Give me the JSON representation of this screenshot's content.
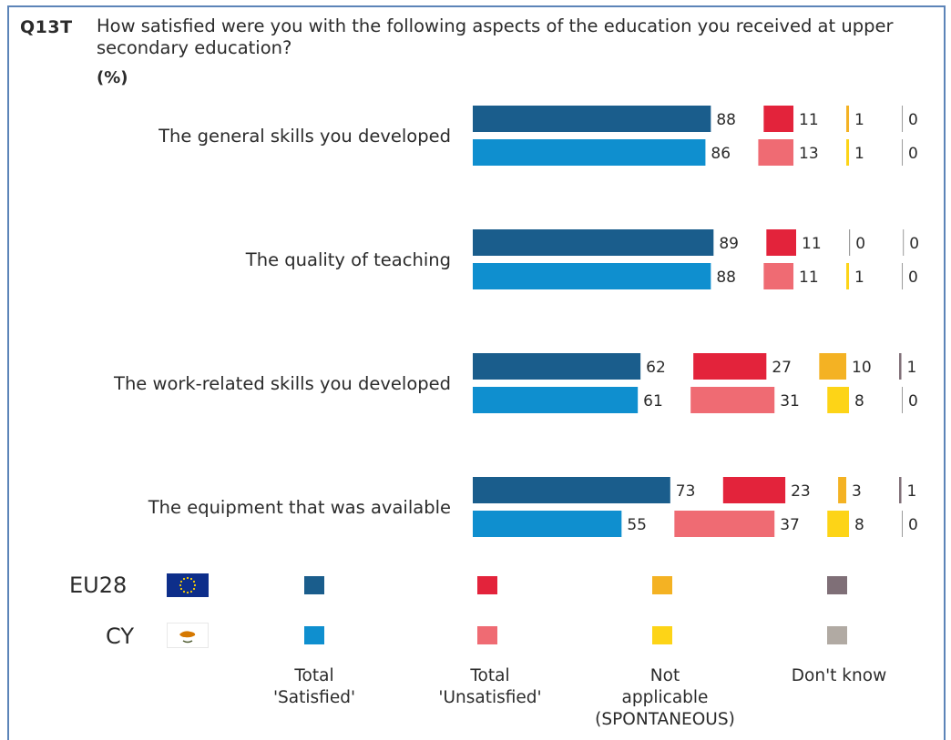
{
  "question": {
    "code": "Q13T",
    "text": "How satisfied were you with the following aspects of the education you received at upper secondary education?",
    "unit": "(%)"
  },
  "colors": {
    "EU28": {
      "satisfied": "#1a5d8c",
      "unsatisfied": "#e3233b",
      "not_applicable": "#f4b223",
      "dont_know": "#7f6f77"
    },
    "CY": {
      "satisfied": "#0f8fcf",
      "unsatisfied": "#ef6b73",
      "not_applicable": "#fdd417",
      "dont_know": "#b1aaa3"
    }
  },
  "legend": {
    "countries": [
      "EU28",
      "CY"
    ],
    "categories": [
      {
        "label_lines": [
          "Total",
          "'Satisfied'"
        ]
      },
      {
        "label_lines": [
          "Total",
          "'Unsatisfied'"
        ]
      },
      {
        "label_lines": [
          "Not",
          "applicable",
          "(SPONTANEOUS)"
        ]
      },
      {
        "label_lines": [
          "Don't know"
        ]
      }
    ]
  },
  "chart_data": {
    "type": "bar",
    "orientation": "horizontal",
    "stacked": false,
    "title": "How satisfied were you with the following aspects of the education you received at upper secondary education?",
    "unit": "%",
    "categories": [
      "The general skills you developed",
      "The quality of teaching",
      "The work-related skills you developed",
      "The equipment that was available"
    ],
    "series_names": [
      "Total 'Satisfied'",
      "Total 'Unsatisfied'",
      "Not applicable (SPONTANEOUS)",
      "Don't know"
    ],
    "groups": [
      "EU28",
      "CY"
    ],
    "values": {
      "EU28": [
        [
          88,
          11,
          1,
          0
        ],
        [
          89,
          11,
          0,
          0
        ],
        [
          62,
          27,
          10,
          1
        ],
        [
          73,
          23,
          3,
          1
        ]
      ],
      "CY": [
        [
          86,
          13,
          1,
          0
        ],
        [
          88,
          11,
          1,
          0
        ],
        [
          61,
          31,
          8,
          0
        ],
        [
          55,
          37,
          8,
          0
        ]
      ]
    }
  }
}
